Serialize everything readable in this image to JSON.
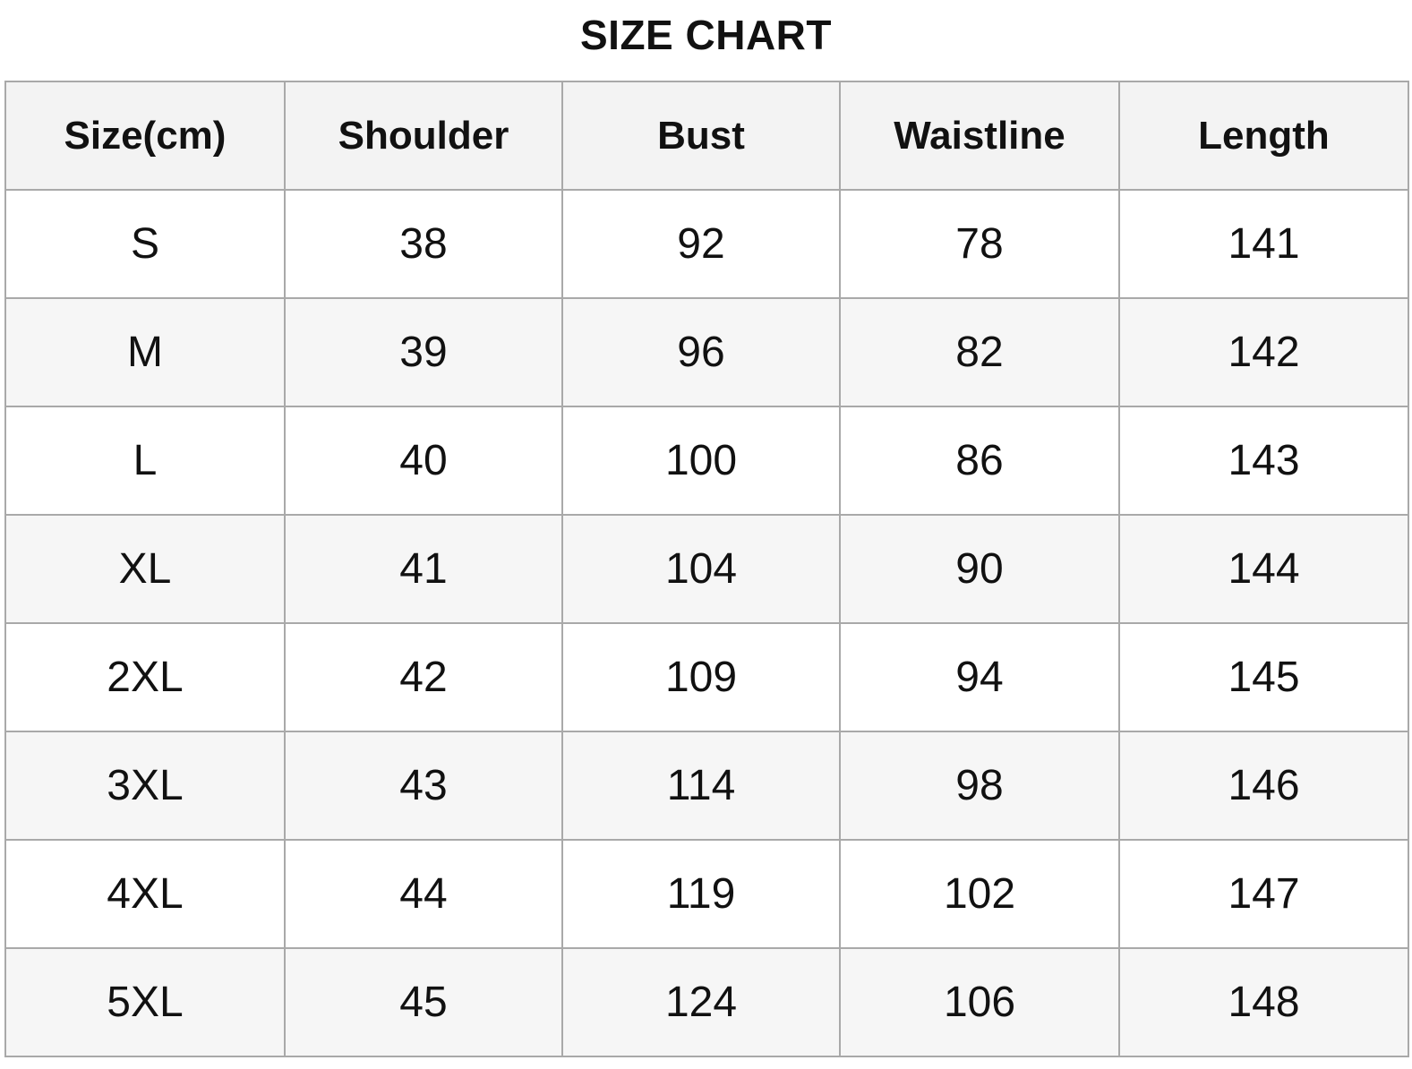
{
  "title": "SIZE CHART",
  "table": {
    "columns": [
      "Size(cm)",
      "Shoulder",
      "Bust",
      "Waistline",
      "Length"
    ],
    "rows": [
      [
        "S",
        "38",
        "92",
        "78",
        "141"
      ],
      [
        "M",
        "39",
        "96",
        "82",
        "142"
      ],
      [
        "L",
        "40",
        "100",
        "86",
        "143"
      ],
      [
        "XL",
        "41",
        "104",
        "90",
        "144"
      ],
      [
        "2XL",
        "42",
        "109",
        "94",
        "145"
      ],
      [
        "3XL",
        "43",
        "114",
        "98",
        "146"
      ],
      [
        "4XL",
        "44",
        "119",
        "102",
        "147"
      ],
      [
        "5XL",
        "45",
        "124",
        "106",
        "148"
      ]
    ]
  },
  "colors": {
    "background": "#ffffff",
    "header_bg": "#f3f3f3",
    "alt_row_bg": "#f6f6f6",
    "border": "#a9a9a9",
    "text": "#111111"
  }
}
